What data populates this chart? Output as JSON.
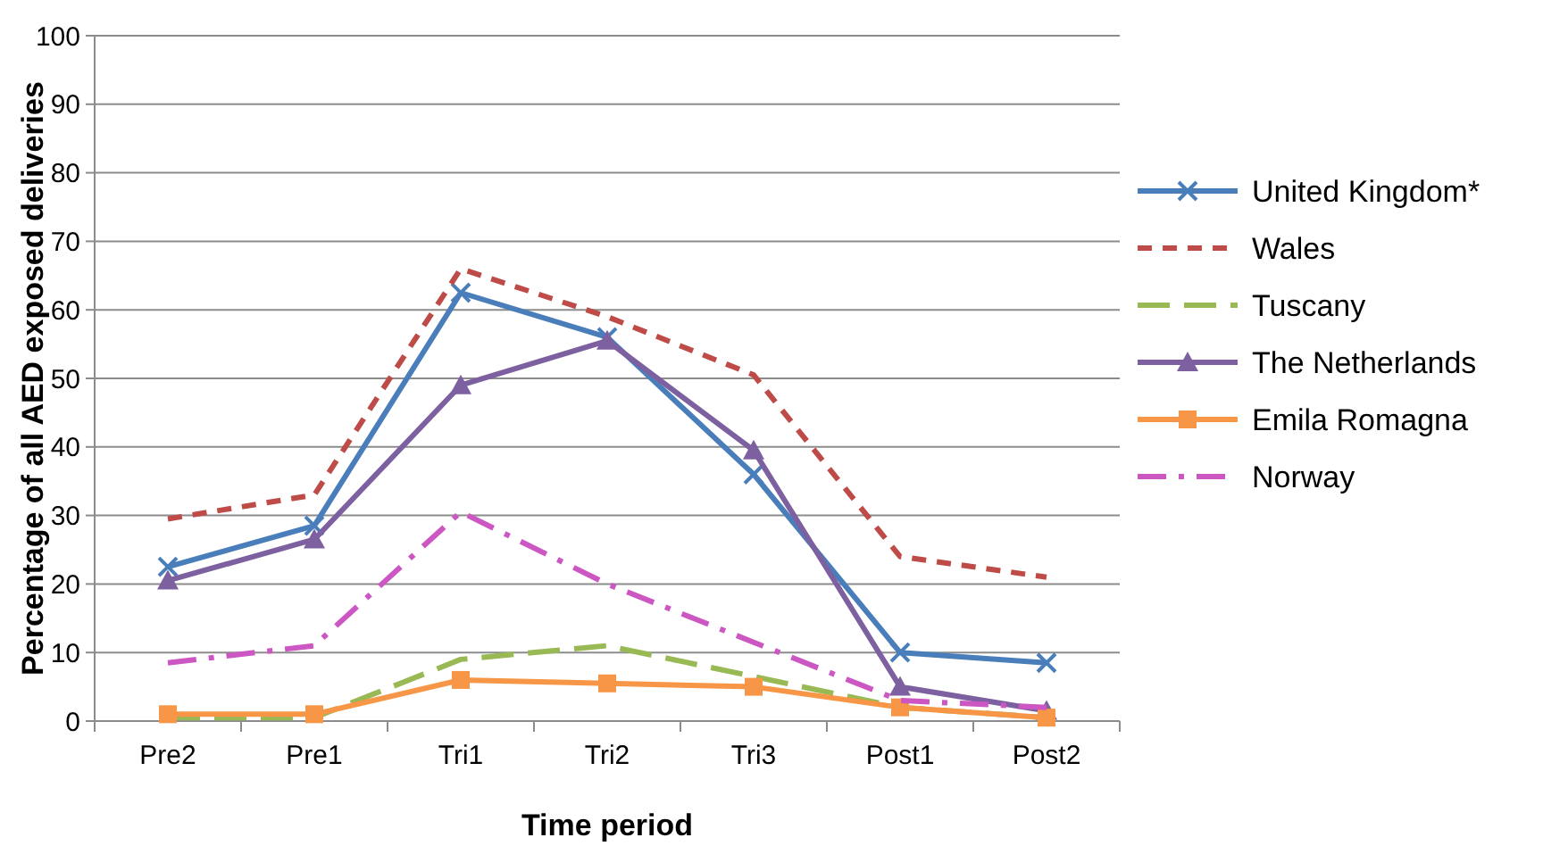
{
  "chart_data": {
    "type": "line",
    "xlabel": "Time period",
    "ylabel": "Percentage of all AED exposed deliveries",
    "categories": [
      "Pre2",
      "Pre1",
      "Tri1",
      "Tri2",
      "Tri3",
      "Post1",
      "Post2"
    ],
    "ylim": [
      0,
      100
    ],
    "yticks": [
      0,
      10,
      20,
      30,
      40,
      50,
      60,
      70,
      80,
      90,
      100
    ],
    "grid": "y",
    "legend": "right",
    "series": [
      {
        "name": "United Kingdom*",
        "color": "#4a7ebb",
        "marker": "cross",
        "line_style": "solid",
        "values": [
          22.5,
          28.5,
          62.5,
          56,
          36,
          10,
          8.5
        ]
      },
      {
        "name": "Wales",
        "color": "#be4b48",
        "marker": "none",
        "line_style": "dashed",
        "values": [
          29.5,
          33,
          66,
          59,
          50.5,
          24,
          21
        ]
      },
      {
        "name": "Tuscany",
        "color": "#98b954",
        "marker": "none",
        "line_style": "longdash",
        "values": [
          0.5,
          0.5,
          9,
          11,
          6.5,
          2,
          0.5
        ]
      },
      {
        "name": "The Netherlands",
        "color": "#7d60a0",
        "marker": "triangle",
        "line_style": "solid",
        "values": [
          20.5,
          26.5,
          49,
          55.5,
          39.5,
          5,
          1.5
        ]
      },
      {
        "name": "Emila Romagna",
        "color": "#f79646",
        "marker": "square",
        "line_style": "solid",
        "values": [
          1,
          1,
          6,
          5.5,
          5,
          2,
          0.5
        ]
      },
      {
        "name": "Norway",
        "color": "#cc56c2",
        "marker": "none",
        "line_style": "dashdot",
        "values": [
          8.5,
          11,
          30.5,
          20,
          11.5,
          3,
          2
        ]
      }
    ]
  }
}
